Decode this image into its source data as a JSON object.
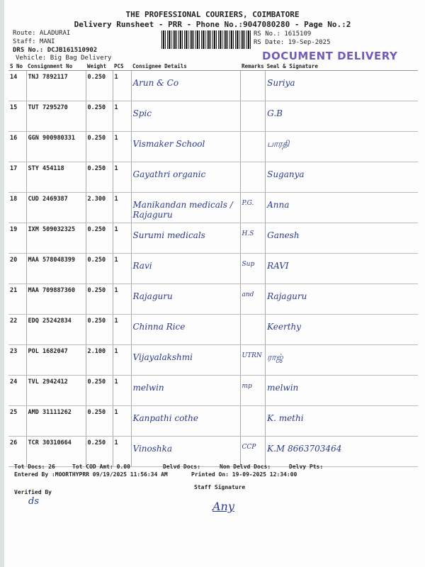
{
  "header": {
    "company": "THE PROFESSIONAL COURIERS, COIMBATORE",
    "title": "Delivery Runsheet - PRR - Phone No.:9047080280 - Page No.:2",
    "route": "Route: ALADURAI",
    "staff": "Staff: MANI",
    "drs": "DRS No.: DCJB161510902",
    "vehicle": "Vehicle: Big Bag Delivery",
    "rs_no": "RS No.: 1615109",
    "rs_date": "RS Date: 19-Sep-2025",
    "stamp": "DOCUMENT DELIVERY"
  },
  "columns": [
    "S No",
    "Consignment No",
    "Weight",
    "PCS",
    "Consignee Details",
    "Remarks",
    "Seal & Signature"
  ],
  "rows": [
    {
      "sno": "14",
      "cn": "TNJ 7892117",
      "wt": "0.250",
      "pcs": "1",
      "consignee": "Arun & Co",
      "remarks": "",
      "sign": "Suriya"
    },
    {
      "sno": "15",
      "cn": "TUT 7295270",
      "wt": "0.250",
      "pcs": "1",
      "consignee": "Spic",
      "remarks": "",
      "sign": "G.B"
    },
    {
      "sno": "16",
      "cn": "GGN 900980331",
      "wt": "0.250",
      "pcs": "1",
      "consignee": "Vismaker School",
      "remarks": "",
      "sign": "பாரதி"
    },
    {
      "sno": "17",
      "cn": "STY 454118",
      "wt": "0.250",
      "pcs": "1",
      "consignee": "Gayathri organic",
      "remarks": "",
      "sign": "Suganya"
    },
    {
      "sno": "18",
      "cn": "CUD 2469387",
      "wt": "2.300",
      "pcs": "1",
      "consignee": "Manikandan medicals / Rajaguru",
      "remarks": "P.G.",
      "sign": "Anna"
    },
    {
      "sno": "19",
      "cn": "IXM 509032325",
      "wt": "0.250",
      "pcs": "1",
      "consignee": "Surumi medicals",
      "remarks": "H.S",
      "sign": "Ganesh"
    },
    {
      "sno": "20",
      "cn": "MAA 578048399",
      "wt": "0.250",
      "pcs": "1",
      "consignee": "Ravi",
      "remarks": "Sup",
      "sign": "RAVI"
    },
    {
      "sno": "21",
      "cn": "MAA 709887360",
      "wt": "0.250",
      "pcs": "1",
      "consignee": "Rajaguru",
      "remarks": "and",
      "sign": "Rajaguru"
    },
    {
      "sno": "22",
      "cn": "EDQ 25242834",
      "wt": "0.250",
      "pcs": "1",
      "consignee": "Chinna Rice",
      "remarks": "",
      "sign": "Keerthy"
    },
    {
      "sno": "23",
      "cn": "POL 1682047",
      "wt": "2.100",
      "pcs": "1",
      "consignee": "Vijayalakshmi",
      "remarks": "UTRN",
      "sign": "ராஜ்"
    },
    {
      "sno": "24",
      "cn": "TVL 2942412",
      "wt": "0.250",
      "pcs": "1",
      "consignee": "melwin",
      "remarks": "mp",
      "sign": "melwin"
    },
    {
      "sno": "25",
      "cn": "AMD 31111262",
      "wt": "0.250",
      "pcs": "1",
      "consignee": "Kanpathi cothe",
      "remarks": "",
      "sign": "K. methi"
    },
    {
      "sno": "26",
      "cn": "TCR 30310664",
      "wt": "0.250",
      "pcs": "1",
      "consignee": "Vinoshka",
      "remarks": "CCP",
      "sign": "K.M 8663703464"
    }
  ],
  "footer": {
    "tot_docs": "Tot Docs:  26",
    "tot_cod": "Tot COD Amt:    0.00",
    "delvd": "Delvd Docs:",
    "non_delvd": "Non Delvd Docs:",
    "delvy_pts": "Delvy Pts:",
    "entered": "Entered By :MOORTHYPRR 09/19/2025 11:56:34 AM",
    "printed": "Printed On: 19-09-2025 12:34:00",
    "verified": "Verified By",
    "staff_sig": "Staff Signature",
    "verified_sign": "ds",
    "staff_sign": "Any"
  }
}
